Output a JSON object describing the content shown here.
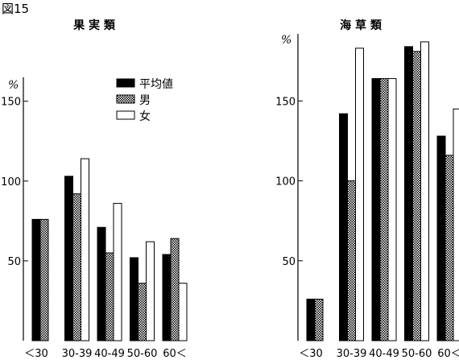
{
  "figure_label": "図15",
  "chart_data": [
    {
      "type": "bar",
      "title": "果 実 類",
      "unit": "%",
      "categories": [
        "＜30",
        "30-39",
        "40-49",
        "50-60",
        "60＜"
      ],
      "yticks": [
        50,
        100,
        150
      ],
      "ylim": [
        0,
        165
      ],
      "legend": [
        "平均値",
        "男",
        "女"
      ],
      "series": [
        {
          "name": "平均値",
          "values": [
            76,
            103,
            71,
            52,
            54
          ]
        },
        {
          "name": "男",
          "values": [
            76,
            92,
            55,
            36,
            64
          ]
        },
        {
          "name": "女",
          "values": [
            null,
            114,
            86,
            62,
            36
          ]
        }
      ]
    },
    {
      "type": "bar",
      "title": "海 草 類",
      "unit": "%",
      "categories": [
        "＜30",
        "30-39",
        "40-49",
        "50-60",
        "60＜"
      ],
      "yticks": [
        50,
        100,
        150
      ],
      "ylim": [
        0,
        192
      ],
      "series": [
        {
          "name": "平均値",
          "values": [
            26,
            142,
            164,
            184,
            128
          ]
        },
        {
          "name": "男",
          "values": [
            26,
            100,
            164,
            181,
            116
          ]
        },
        {
          "name": "女",
          "values": [
            null,
            183,
            164,
            187,
            145
          ]
        }
      ]
    }
  ],
  "colors": {
    "series": [
      "#000000",
      "checker",
      "#ffffff"
    ],
    "axis": "#000000"
  }
}
